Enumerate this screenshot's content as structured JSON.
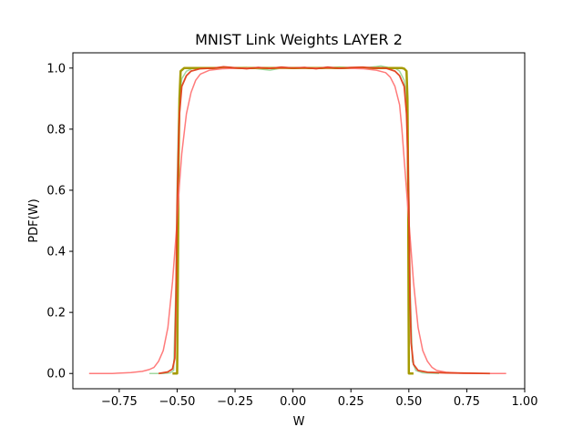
{
  "chart_data": {
    "type": "line",
    "title": "MNIST Link Weights LAYER 2",
    "xlabel": "W",
    "ylabel": "PDF(W)",
    "xlim": [
      -0.95,
      1.0
    ],
    "ylim": [
      -0.05,
      1.05
    ],
    "x_ticks": [
      -0.75,
      -0.5,
      -0.25,
      0.0,
      0.25,
      0.5,
      0.75,
      1.0
    ],
    "x_tick_labels": [
      "−0.75",
      "−0.50",
      "−0.25",
      "0.00",
      "0.25",
      "0.50",
      "0.75",
      "1.00"
    ],
    "y_ticks": [
      0.0,
      0.2,
      0.4,
      0.6,
      0.8,
      1.0
    ],
    "y_tick_labels": [
      "0.0",
      "0.2",
      "0.4",
      "0.6",
      "0.8",
      "1.0"
    ],
    "grid": false,
    "series": [
      {
        "color": "#8fd18f",
        "opacity": 0.85,
        "width": 1.5,
        "x": [
          -0.62,
          -0.56,
          -0.53,
          -0.515,
          -0.505,
          -0.5,
          -0.495,
          -0.49,
          -0.48,
          -0.46,
          -0.43,
          -0.38,
          -0.3,
          -0.2,
          -0.1,
          -0.05,
          0.0,
          0.1,
          0.2,
          0.3,
          0.36,
          0.38,
          0.41,
          0.44,
          0.46,
          0.48,
          0.49,
          0.495,
          0.5,
          0.505,
          0.515,
          0.53,
          0.56,
          0.63
        ],
        "y": [
          0.0,
          0.0,
          0.002,
          0.01,
          0.3,
          0.62,
          0.8,
          0.9,
          0.965,
          0.99,
          1.0,
          1.0,
          1.0,
          1.002,
          0.993,
          1.0,
          1.0,
          1.0,
          1.003,
          1.0,
          1.005,
          1.007,
          1.002,
          1.0,
          0.99,
          0.96,
          0.9,
          0.8,
          0.6,
          0.3,
          0.04,
          0.01,
          0.002,
          0.0
        ]
      },
      {
        "color": "#a59a00",
        "opacity": 1,
        "width": 2.5,
        "x": [
          -0.52,
          -0.5,
          -0.497,
          -0.494,
          -0.49,
          -0.485,
          -0.47,
          -0.45,
          -0.3,
          0.0,
          0.3,
          0.45,
          0.47,
          0.48,
          0.49,
          0.494,
          0.497,
          0.5,
          0.52
        ],
        "y": [
          0.0,
          0.0,
          0.3,
          0.7,
          0.9,
          0.99,
          1.0,
          1.0,
          1.0,
          1.0,
          1.0,
          1.0,
          1.0,
          0.998,
          0.99,
          0.9,
          0.6,
          0.0,
          0.0
        ]
      },
      {
        "color": "#ff7b7b",
        "opacity": 1,
        "width": 1.5,
        "x": [
          -0.88,
          -0.78,
          -0.7,
          -0.65,
          -0.62,
          -0.6,
          -0.58,
          -0.56,
          -0.54,
          -0.52,
          -0.5,
          -0.49,
          -0.48,
          -0.46,
          -0.44,
          -0.42,
          -0.4,
          -0.36,
          -0.3,
          -0.2,
          0.0,
          0.2,
          0.3,
          0.36,
          0.4,
          0.42,
          0.44,
          0.46,
          0.47,
          0.48,
          0.49,
          0.5,
          0.52,
          0.54,
          0.56,
          0.58,
          0.6,
          0.62,
          0.66,
          0.72,
          0.8,
          0.92
        ],
        "y": [
          0.0,
          0.0,
          0.003,
          0.007,
          0.013,
          0.02,
          0.04,
          0.075,
          0.15,
          0.3,
          0.5,
          0.62,
          0.72,
          0.85,
          0.92,
          0.96,
          0.98,
          0.993,
          0.998,
          1.0,
          1.0,
          1.0,
          0.998,
          0.993,
          0.985,
          0.97,
          0.94,
          0.88,
          0.8,
          0.7,
          0.6,
          0.5,
          0.3,
          0.15,
          0.075,
          0.04,
          0.02,
          0.01,
          0.004,
          0.001,
          0.0,
          0.0
        ]
      },
      {
        "color": "#e0401b",
        "opacity": 0.95,
        "width": 1.8,
        "x": [
          -0.58,
          -0.54,
          -0.52,
          -0.51,
          -0.505,
          -0.5,
          -0.495,
          -0.49,
          -0.48,
          -0.46,
          -0.44,
          -0.4,
          -0.34,
          -0.3,
          -0.2,
          -0.15,
          -0.1,
          -0.05,
          0.0,
          0.05,
          0.1,
          0.15,
          0.2,
          0.25,
          0.3,
          0.35,
          0.4,
          0.44,
          0.46,
          0.48,
          0.49,
          0.495,
          0.5,
          0.505,
          0.51,
          0.52,
          0.54,
          0.58,
          0.66,
          0.76,
          0.85
        ],
        "y": [
          0.0,
          0.005,
          0.015,
          0.05,
          0.25,
          0.55,
          0.72,
          0.85,
          0.94,
          0.975,
          0.99,
          0.998,
          1.0,
          1.004,
          0.998,
          1.002,
          0.999,
          1.003,
          1.0,
          1.002,
          0.998,
          1.003,
          0.999,
          1.002,
          1.003,
          1.0,
          1.0,
          0.99,
          0.975,
          0.94,
          0.85,
          0.72,
          0.55,
          0.25,
          0.1,
          0.03,
          0.01,
          0.004,
          0.002,
          0.001,
          0.0
        ]
      }
    ]
  }
}
